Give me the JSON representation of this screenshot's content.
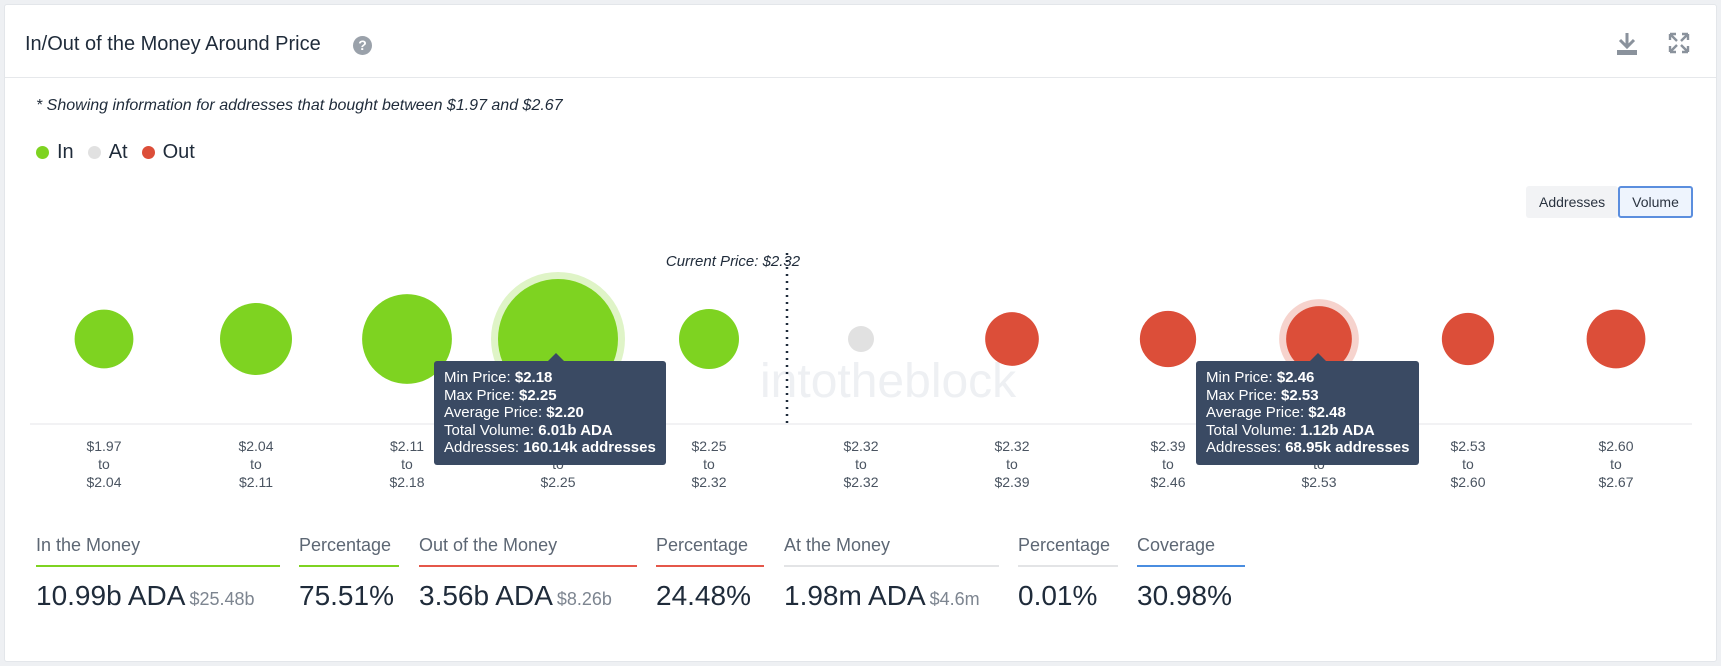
{
  "header": {
    "title": "In/Out of the Money Around Price",
    "help_icon": "question-circle-icon",
    "download_icon": "download-icon",
    "expand_icon": "expand-icon"
  },
  "note": "* Showing information for addresses that bought between $1.97 and $2.67",
  "legend": [
    {
      "label": "In",
      "color": "#7ed321"
    },
    {
      "label": "At",
      "color": "#e1e1e1"
    },
    {
      "label": "Out",
      "color": "#dc4e39"
    }
  ],
  "toggle": {
    "addresses": "Addresses",
    "volume": "Volume",
    "active": "volume"
  },
  "chart_data": {
    "type": "bubble",
    "current_price_label": "Current Price: $2.32",
    "current_price_after_index": 4,
    "colors": {
      "in": "#7ed321",
      "at": "#e1e1e1",
      "out": "#dc4e39"
    },
    "buckets": [
      {
        "from": "$1.97",
        "to": "$2.04",
        "status": "in",
        "size": 0.24
      },
      {
        "from": "$2.04",
        "to": "$2.11",
        "status": "in",
        "size": 0.36
      },
      {
        "from": "$2.11",
        "to": "$2.18",
        "status": "in",
        "size": 0.56
      },
      {
        "from": "$2.18",
        "to": "$2.25",
        "status": "in",
        "size": 1.0,
        "highlighted": true
      },
      {
        "from": "$2.25",
        "to": "$2.32",
        "status": "in",
        "size": 0.25
      },
      {
        "from": "$2.32",
        "to": "$2.32",
        "status": "at",
        "size": 0.04
      },
      {
        "from": "$2.32",
        "to": "$2.39",
        "status": "out",
        "size": 0.2
      },
      {
        "from": "$2.39",
        "to": "$2.46",
        "status": "out",
        "size": 0.22
      },
      {
        "from": "$2.46",
        "to": "$2.53",
        "status": "out",
        "size": 0.3,
        "highlighted": true
      },
      {
        "from": "$2.53",
        "to": "$2.60",
        "status": "out",
        "size": 0.19
      },
      {
        "from": "$2.60",
        "to": "$2.67",
        "status": "out",
        "size": 0.24
      }
    ],
    "to_word": "to",
    "watermark": "intotheblock"
  },
  "tooltips": [
    {
      "min_label": "Min Price:",
      "min": "$2.18",
      "max_label": "Max Price:",
      "max": "$2.25",
      "avg_label": "Average Price:",
      "avg": "$2.20",
      "vol_label": "Total Volume:",
      "vol": "6.01b ADA",
      "addr_label": "Addresses:",
      "addr": "160.14k addresses"
    },
    {
      "min_label": "Min Price:",
      "min": "$2.46",
      "max_label": "Max Price:",
      "max": "$2.53",
      "avg_label": "Average Price:",
      "avg": "$2.48",
      "vol_label": "Total Volume:",
      "vol": "1.12b ADA",
      "addr_label": "Addresses:",
      "addr": "68.95k addresses"
    }
  ],
  "stats": {
    "in": {
      "label": "In the Money",
      "value": "10.99b ADA",
      "sub": "$25.48b",
      "color": "#7ed321"
    },
    "in_pct": {
      "label": "Percentage",
      "value": "75.51%",
      "color": "#7ed321"
    },
    "out": {
      "label": "Out of the Money",
      "value": "3.56b ADA",
      "sub": "$8.26b",
      "color": "#e5574a"
    },
    "out_pct": {
      "label": "Percentage",
      "value": "24.48%",
      "color": "#e5574a"
    },
    "at": {
      "label": "At the Money",
      "value": "1.98m ADA",
      "sub": "$4.6m",
      "color": "#e3e4e6"
    },
    "at_pct": {
      "label": "Percentage",
      "value": "0.01%",
      "color": "#e3e4e6"
    },
    "coverage": {
      "label": "Coverage",
      "value": "30.98%",
      "color": "#4a8de0"
    }
  }
}
